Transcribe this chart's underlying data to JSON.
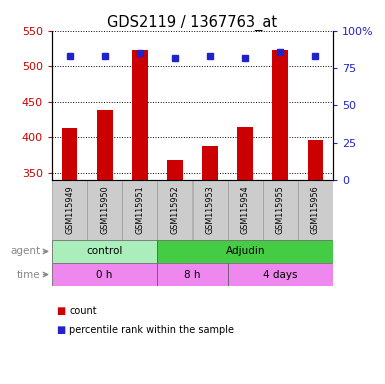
{
  "title": "GDS2119 / 1367763_at",
  "samples": [
    "GSM115949",
    "GSM115950",
    "GSM115951",
    "GSM115952",
    "GSM115953",
    "GSM115954",
    "GSM115955",
    "GSM115956"
  ],
  "counts": [
    413,
    438,
    523,
    368,
    388,
    415,
    523,
    397
  ],
  "percentile_ranks": [
    83,
    83,
    85,
    82,
    83,
    82,
    86,
    83
  ],
  "ylim_left": [
    340,
    550
  ],
  "ylim_right": [
    0,
    100
  ],
  "yticks_left": [
    350,
    400,
    450,
    500,
    550
  ],
  "yticks_right": [
    0,
    25,
    50,
    75,
    100
  ],
  "bar_color": "#CC0000",
  "dot_color": "#2222CC",
  "bar_bottom": 340,
  "agent_groups": [
    {
      "label": "control",
      "start": 0,
      "end": 3,
      "color": "#AAEEBB"
    },
    {
      "label": "Adjudin",
      "start": 3,
      "end": 8,
      "color": "#44CC44"
    }
  ],
  "time_groups": [
    {
      "label": "0 h",
      "start": 0,
      "end": 3,
      "color": "#EE88EE"
    },
    {
      "label": "8 h",
      "start": 3,
      "end": 5,
      "color": "#EE88EE"
    },
    {
      "label": "4 days",
      "start": 5,
      "end": 8,
      "color": "#EE88EE"
    }
  ],
  "xlabel_color": "#CC0000",
  "ylabel_right_color": "#2222CC",
  "background_color": "#FFFFFF",
  "sample_box_color": "#CCCCCC",
  "label_color": "#888888"
}
